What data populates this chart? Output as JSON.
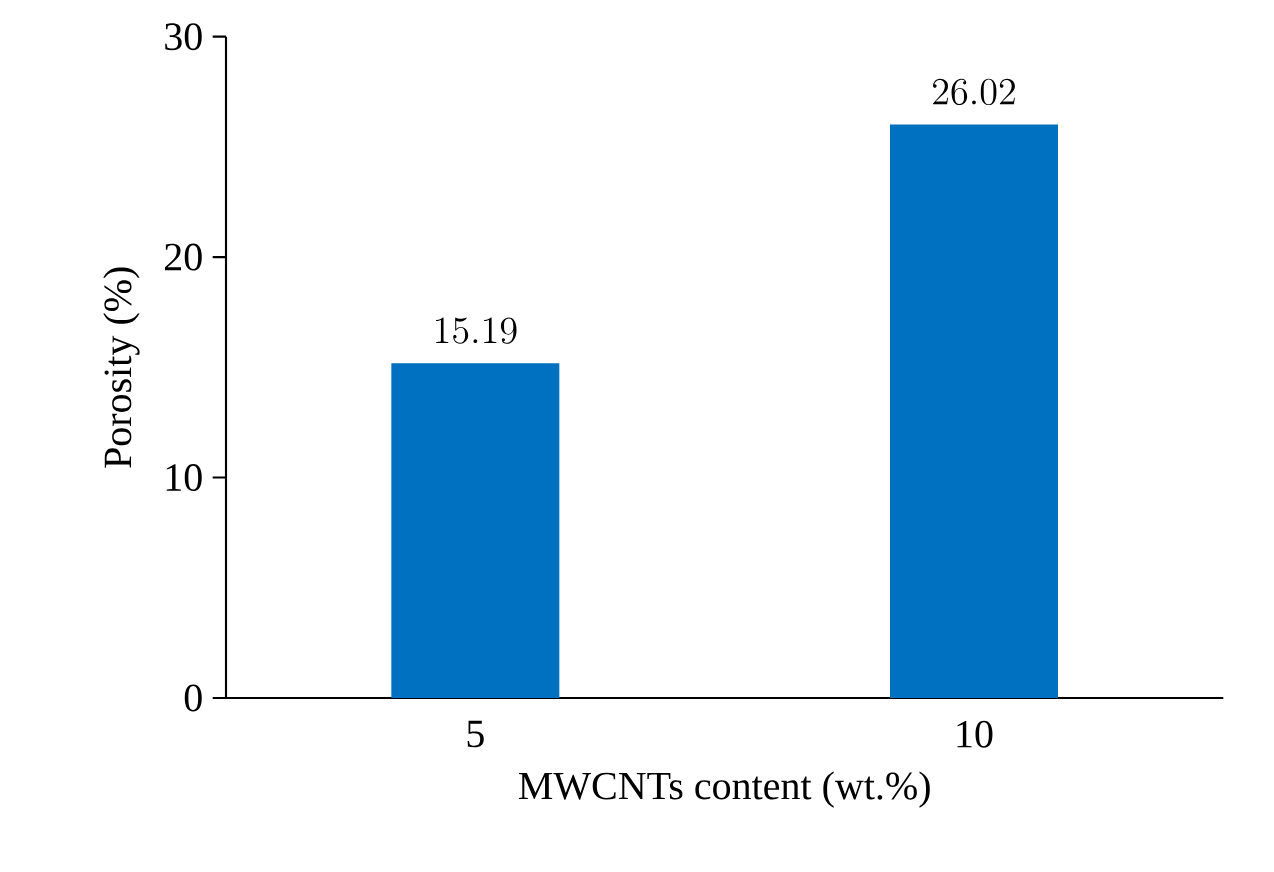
{
  "chart_data": {
    "type": "bar",
    "xlabel": "MWCNTs content (wt.%)",
    "ylabel": "Porosity (%)",
    "categories": [
      "5",
      "10"
    ],
    "values": [
      15.19,
      26.02
    ],
    "color": "#0070c0",
    "ylim": [
      0,
      30
    ],
    "yticks": [
      0,
      10,
      20,
      30
    ],
    "data_labels": true
  }
}
